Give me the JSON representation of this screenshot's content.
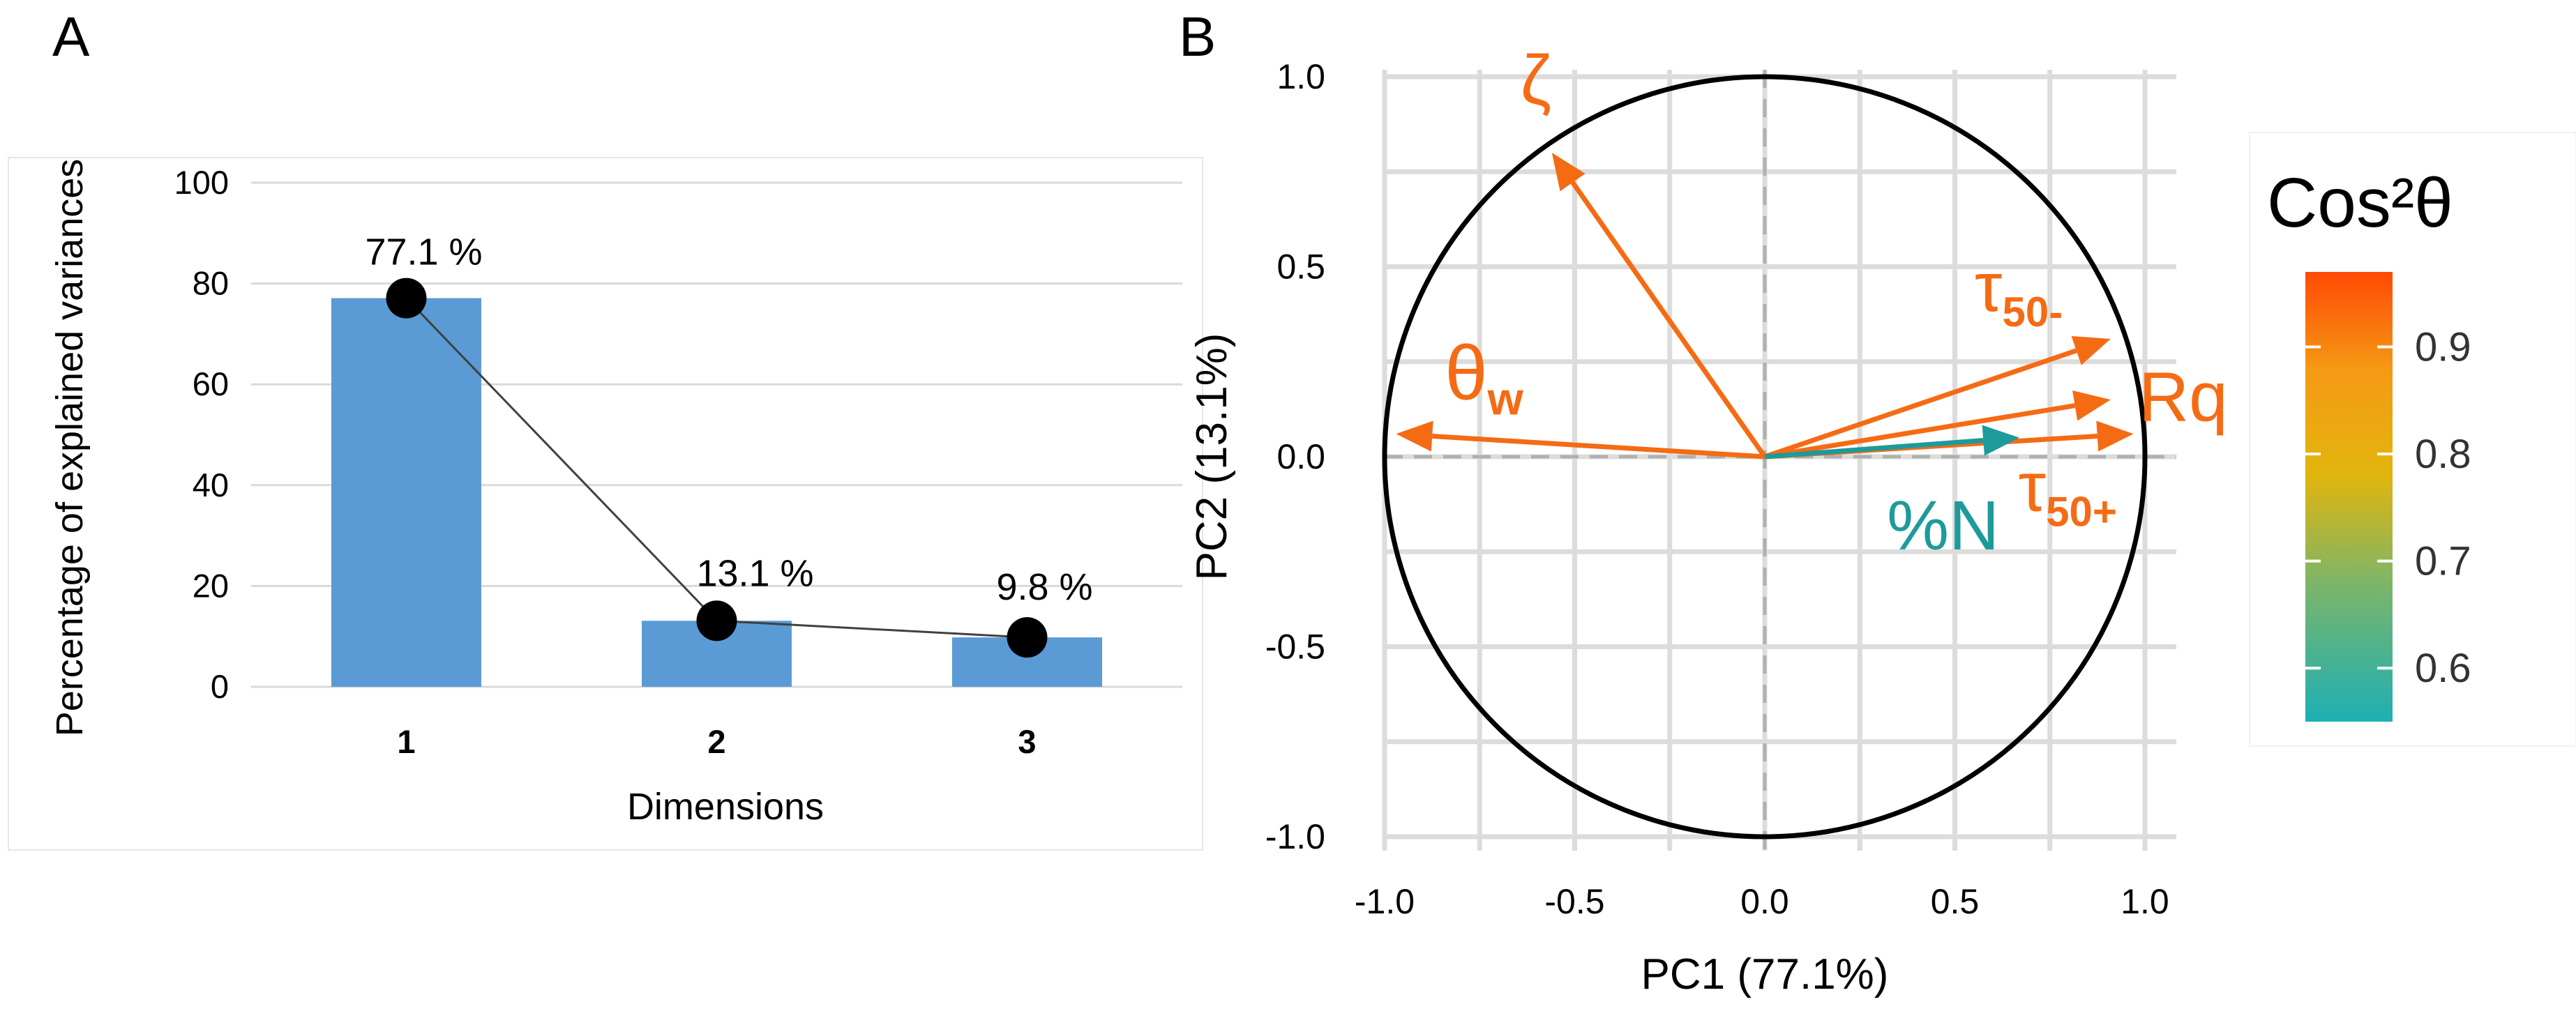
{
  "panels": {
    "a_label": "A",
    "b_label": "B"
  },
  "chart_data": [
    {
      "type": "bar",
      "panel": "A",
      "title": "",
      "xlabel": "Dimensions",
      "ylabel": "Percentage of explained variances",
      "categories": [
        "1",
        "2",
        "3"
      ],
      "values": [
        77.1,
        13.1,
        9.8
      ],
      "data_labels": [
        "77.1 %",
        "13.1 %",
        "9.8 %"
      ],
      "ylim": [
        0,
        100
      ],
      "yticks": [
        0,
        20,
        40,
        60,
        80,
        100
      ],
      "grid": true,
      "overlay_line": true,
      "bar_color": "#5B9BD5",
      "line_color": "#404040",
      "marker_color": "#000000"
    },
    {
      "type": "scatter",
      "subtype": "pca-variable-correlation-circle",
      "panel": "B",
      "xlabel": "PC1 (77.1%)",
      "ylabel": "PC2 (13.1%)",
      "xlim": [
        -1.05,
        1.05
      ],
      "ylim": [
        -1.05,
        1.05
      ],
      "xticks": [
        "-1.0",
        "-0.5",
        "0.0",
        "0.5",
        "1.0"
      ],
      "yticks": [
        "-1.0",
        "-0.5",
        "0.0",
        "0.5",
        "1.0"
      ],
      "grid": true,
      "unit_circle": true,
      "vectors": [
        {
          "name": "ζ",
          "x": -0.56,
          "y": 0.8,
          "cos2": 0.96,
          "color": "#F56B14"
        },
        {
          "name": "θw",
          "x": -0.97,
          "y": 0.06,
          "cos2": 0.96,
          "color": "#F56B14"
        },
        {
          "name": "τ50-",
          "x": 0.91,
          "y": 0.31,
          "cos2": 0.94,
          "color": "#F56B14"
        },
        {
          "name": "Rq",
          "x": 0.91,
          "y": 0.15,
          "cos2": 0.95,
          "color": "#F56B14"
        },
        {
          "name": "τ50+",
          "x": 0.97,
          "y": 0.06,
          "cos2": 0.96,
          "color": "#F56B14"
        },
        {
          "name": "%N",
          "x": 0.67,
          "y": 0.05,
          "cos2": 0.58,
          "color": "#1E9A9A"
        }
      ],
      "legend": {
        "title": "Cos²θ",
        "position": "right",
        "ticks": [
          "0.6",
          "0.7",
          "0.8",
          "0.9"
        ],
        "tick_values": [
          0.6,
          0.7,
          0.8,
          0.9
        ],
        "range": [
          0.55,
          0.97
        ],
        "gradient": [
          "#1EAFB4",
          "#7AB56B",
          "#E2B50D",
          "#F59A14",
          "#FF4A05"
        ]
      }
    }
  ]
}
